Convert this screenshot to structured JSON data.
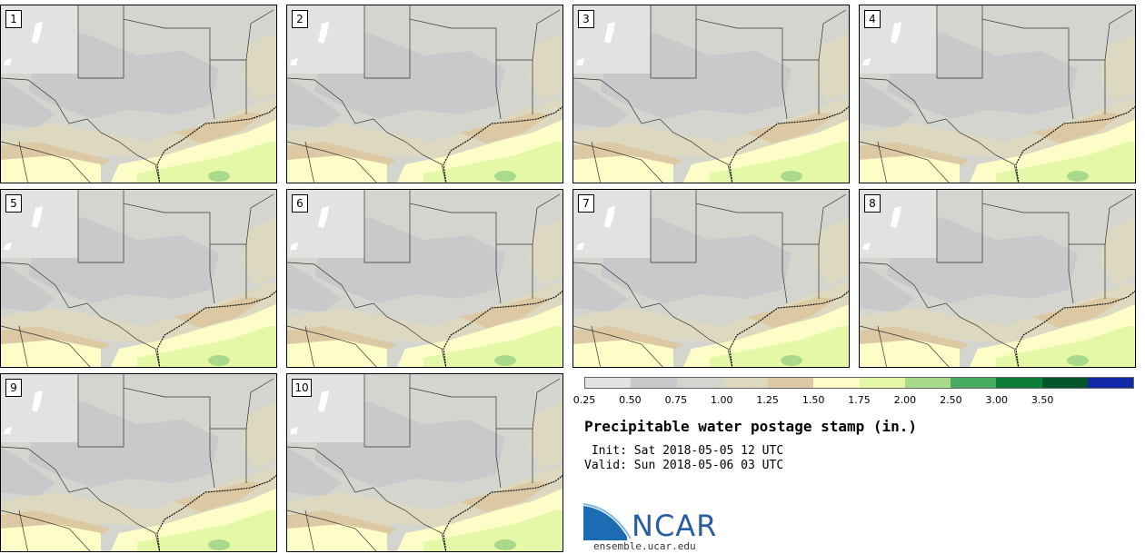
{
  "product": {
    "title": "Precipitable water postage stamp (in.)",
    "init_line": " Init: Sat 2018-05-05 12 UTC",
    "valid_line": "Valid: Sun 2018-05-06 03 UTC"
  },
  "members": [
    {
      "label": "1"
    },
    {
      "label": "2"
    },
    {
      "label": "3"
    },
    {
      "label": "4"
    },
    {
      "label": "5"
    },
    {
      "label": "6"
    },
    {
      "label": "7"
    },
    {
      "label": "8"
    },
    {
      "label": "9"
    },
    {
      "label": "10"
    }
  ],
  "colorbar": {
    "ticks": [
      "0.25",
      "0.50",
      "0.75",
      "1.00",
      "1.25",
      "1.50",
      "1.75",
      "2.00",
      "2.50",
      "3.00",
      "3.50"
    ],
    "colors": [
      "#e2e2e2",
      "#c9c9cb",
      "#d5d5d0",
      "#ddd8c0",
      "#dcc9a4",
      "#fdfdc8",
      "#e4f8a8",
      "#a9da8c",
      "#48ad62",
      "#0c7e3a",
      "#05552a",
      "#1229a8"
    ]
  },
  "logo": {
    "word": "NCAR",
    "url": "ensemble.ucar.edu"
  }
}
